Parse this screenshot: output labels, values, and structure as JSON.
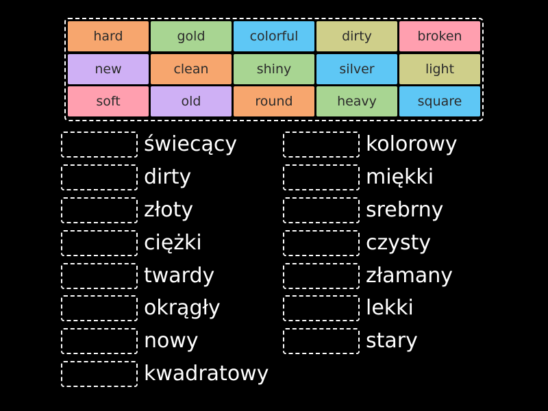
{
  "colors": {
    "orange": "#f7a66e",
    "green": "#a8d592",
    "blue": "#5ec7f5",
    "olive": "#cfcf8a",
    "pink": "#ff9faf",
    "purple": "#cfb0f5",
    "page_background": "#000000",
    "slot_border": "#ffffff",
    "text_dark": "#2b2b2b",
    "text_light": "#ffffff"
  },
  "tiles": [
    {
      "label": "hard",
      "color": "#f7a66e"
    },
    {
      "label": "gold",
      "color": "#a8d592"
    },
    {
      "label": "colorful",
      "color": "#5ec7f5"
    },
    {
      "label": "dirty",
      "color": "#cfcf8a"
    },
    {
      "label": "broken",
      "color": "#ff9faf"
    },
    {
      "label": "new",
      "color": "#cfb0f5"
    },
    {
      "label": "clean",
      "color": "#f7a66e"
    },
    {
      "label": "shiny",
      "color": "#a8d592"
    },
    {
      "label": "silver",
      "color": "#5ec7f5"
    },
    {
      "label": "light",
      "color": "#cfcf8a"
    },
    {
      "label": "soft",
      "color": "#ff9faf"
    },
    {
      "label": "old",
      "color": "#cfb0f5"
    },
    {
      "label": "round",
      "color": "#f7a66e"
    },
    {
      "label": "heavy",
      "color": "#a8d592"
    },
    {
      "label": "square",
      "color": "#5ec7f5"
    }
  ],
  "left_words": [
    "świecący",
    "dirty",
    "złoty",
    "ciężki",
    "twardy",
    "okrągły",
    "nowy",
    "kwadratowy"
  ],
  "right_words": [
    "kolorowy",
    "miękki",
    "srebrny",
    "czysty",
    "złamany",
    "lekki",
    "stary"
  ]
}
